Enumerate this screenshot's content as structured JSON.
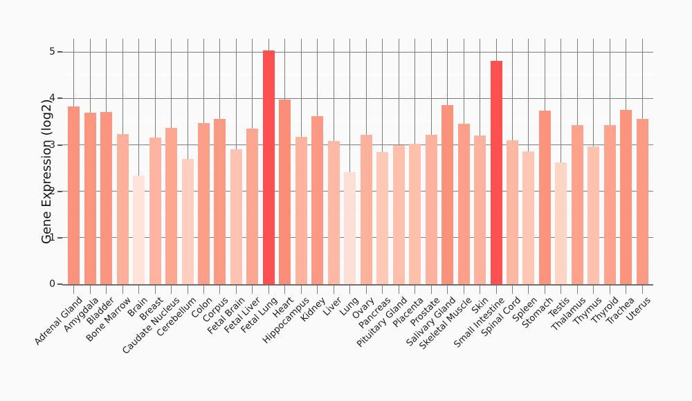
{
  "figure": {
    "background": "#fafafa",
    "grid_major_color": "#7d7d7d",
    "grid_minor_color": "#ffffff",
    "axis_color": "#6e6e6e",
    "tick_color": "#7d7d7d",
    "text_color": "#1a1a1a",
    "highlight_color": "#fd5050"
  },
  "chart_data": {
    "type": "bar",
    "title": "",
    "xlabel": "",
    "ylabel": "Gene Expression (log2)",
    "ylim": [
      0,
      5.29
    ],
    "yticks": [
      0,
      1,
      2,
      3,
      4,
      5
    ],
    "grid": "major gray horizontal + vertical lines at bar centers, minor white horizontal lines at 0.5 steps",
    "legend": "none",
    "categories": [
      "Adrenal Gland",
      "Amygdala",
      "Bladder",
      "Bone Marrow",
      "Brain",
      "Breast",
      "Caudate Nucleus",
      "Cerebellum",
      "Colon",
      "Corpus",
      "Fetal Brain",
      "Fetal Liver",
      "Fetal Lung",
      "Heart",
      "Hippocampus",
      "Kidney",
      "Liver",
      "Lung",
      "Ovary",
      "Pancreas",
      "Pituitary Gland",
      "Placenta",
      "Prostate",
      "Salivary Gland",
      "Skeletal Muscle",
      "Skin",
      "Small Intestine",
      "Spinal Cord",
      "Spleen",
      "Stomach",
      "Testis",
      "Thalamus",
      "Thymus",
      "Thyroid",
      "Trachea",
      "Uterus"
    ],
    "values": [
      3.83,
      3.69,
      3.71,
      3.23,
      2.34,
      3.15,
      3.36,
      2.7,
      3.47,
      3.56,
      2.91,
      3.35,
      5.03,
      3.98,
      3.17,
      3.62,
      3.08,
      2.41,
      3.21,
      2.85,
      3.0,
      3.02,
      3.21,
      3.85,
      3.45,
      3.2,
      4.81,
      3.1,
      2.86,
      3.74,
      2.62,
      3.43,
      2.96,
      3.42,
      3.75,
      3.56
    ],
    "bar_colors": [
      "#fb927d",
      "#fc967f",
      "#fc9580",
      "#fdb19c",
      "#fee3da",
      "#feb4a0",
      "#fda791",
      "#fecfbf",
      "#fc9f89",
      "#fc9b85",
      "#fec4b1",
      "#fda792",
      "#fd5050",
      "#fb8e79",
      "#feb39f",
      "#fc9883",
      "#feb8a5",
      "#fedfd5",
      "#fdb29d",
      "#fec8b6",
      "#fec0ac",
      "#febfab",
      "#fdb29d",
      "#fb927c",
      "#fca08a",
      "#fdb29e",
      "#fd5050",
      "#feb7a3",
      "#fec7b5",
      "#fc937e",
      "#fed4c5",
      "#fda28c",
      "#fec2ae",
      "#fda28d",
      "#fc937d",
      "#fc9b85"
    ],
    "highlighted_categories": [
      "Fetal Lung",
      "Small Intestine"
    ]
  }
}
